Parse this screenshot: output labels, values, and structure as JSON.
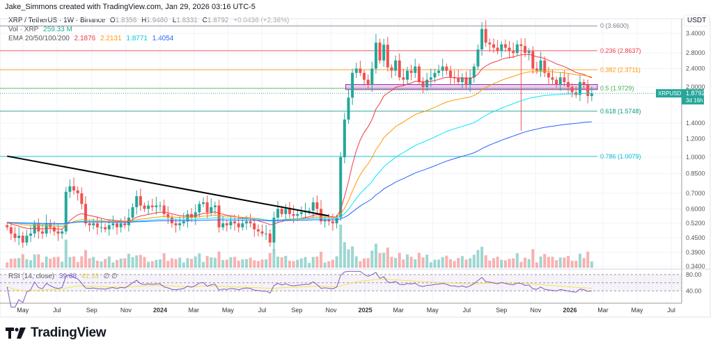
{
  "credit": "Jake_Simmons created with TradingView.com, Jan 29, 2026 03:16 UTC-5",
  "legend": {
    "symbol": "XRP / TetherUS · 1W · Binance",
    "o_label": "O",
    "o": "1.8356",
    "h_label": "H",
    "h": "1.9460",
    "l_label": "L",
    "l": "1.8331",
    "c_label": "C",
    "c": "1.8792",
    "change": "+0.0436 (+2.38%)",
    "vol_label": "Vol · XRP",
    "vol": "259.33 M",
    "ema_label": "EMA 20/50/100/200",
    "ema20": "2.1876",
    "ema50": "2.2131",
    "ema100": "1.8771",
    "ema200": "1.4054",
    "rsi_label": "RSI (14, close)",
    "rsi": "39.68",
    "rsi_ma": "41.33",
    "rsi_extra": "∅ ∅"
  },
  "colors": {
    "up": "#26a69a",
    "down": "#ef5350",
    "ema20": "#f23645",
    "ema50": "#ff9800",
    "ema100": "#00e5ff",
    "ema200": "#2962ff",
    "rsi": "#7e57c2",
    "rsi_ma": "#f5e642",
    "trendline": "#000000"
  },
  "price_axis": {
    "currency": "USDT",
    "ticks": [
      "3.4000",
      "2.8000",
      "2.4000",
      "2.0000",
      "1.4000",
      "1.2000",
      "1.0000",
      "0.8500",
      "0.7000",
      "0.6000",
      "0.5200",
      "0.4500",
      "0.3900",
      "0.3400"
    ]
  },
  "rsi_axis": {
    "ticks": [
      "80.00",
      "40.00"
    ]
  },
  "price_tag": {
    "symbol": "XRPUSDT",
    "price": "1.8792",
    "countdown": "3d 16h"
  },
  "time_axis": [
    {
      "label": "May",
      "date": "2023-05-01"
    },
    {
      "label": "Jul",
      "date": "2023-07-01"
    },
    {
      "label": "Sep",
      "date": "2023-09-01"
    },
    {
      "label": "Nov",
      "date": "2023-11-01"
    },
    {
      "label": "2024",
      "date": "2024-01-01"
    },
    {
      "label": "Mar",
      "date": "2024-03-01"
    },
    {
      "label": "May",
      "date": "2024-05-01"
    },
    {
      "label": "Jul",
      "date": "2024-07-01"
    },
    {
      "label": "Sep",
      "date": "2024-09-01"
    },
    {
      "label": "Nov",
      "date": "2024-11-01"
    },
    {
      "label": "2025",
      "date": "2025-01-01"
    },
    {
      "label": "Mar",
      "date": "2025-03-01"
    },
    {
      "label": "May",
      "date": "2025-05-01"
    },
    {
      "label": "Jul",
      "date": "2025-07-01"
    },
    {
      "label": "Sep",
      "date": "2025-09-01"
    },
    {
      "label": "Nov",
      "date": "2025-11-01"
    },
    {
      "label": "2026",
      "date": "2026-01-01"
    },
    {
      "label": "Mar",
      "date": "2026-03-01"
    },
    {
      "label": "May",
      "date": "2026-05-01"
    },
    {
      "label": "Jul",
      "date": "2026-07-01"
    }
  ],
  "logo": "TradingView",
  "chart_data": {
    "type": "candlestick",
    "scale": "log",
    "ylim": [
      0.34,
      3.66
    ],
    "grid": true,
    "start_week": "2023-04-03",
    "interval": "1W",
    "closes": [
      0.5,
      0.47,
      0.45,
      0.46,
      0.43,
      0.46,
      0.47,
      0.52,
      0.48,
      0.47,
      0.52,
      0.5,
      0.48,
      0.47,
      0.48,
      0.71,
      0.75,
      0.72,
      0.7,
      0.63,
      0.52,
      0.51,
      0.52,
      0.5,
      0.5,
      0.49,
      0.51,
      0.52,
      0.5,
      0.52,
      0.51,
      0.55,
      0.61,
      0.68,
      0.62,
      0.6,
      0.62,
      0.61,
      0.62,
      0.62,
      0.57,
      0.55,
      0.52,
      0.51,
      0.52,
      0.53,
      0.57,
      0.55,
      0.58,
      0.63,
      0.64,
      0.58,
      0.61,
      0.62,
      0.5,
      0.52,
      0.51,
      0.53,
      0.52,
      0.5,
      0.52,
      0.53,
      0.52,
      0.49,
      0.48,
      0.47,
      0.47,
      0.43,
      0.55,
      0.6,
      0.57,
      0.6,
      0.57,
      0.56,
      0.57,
      0.58,
      0.59,
      0.59,
      0.64,
      0.6,
      0.53,
      0.54,
      0.53,
      0.52,
      0.55,
      1.0,
      1.45,
      1.8,
      2.3,
      2.4,
      2.3,
      2.15,
      2.05,
      2.4,
      3.1,
      2.6,
      3.04,
      2.43,
      2.35,
      2.6,
      2.2,
      2.15,
      2.35,
      2.3,
      2.45,
      2.1,
      2.0,
      2.15,
      2.2,
      2.3,
      2.35,
      2.45,
      2.35,
      2.2,
      2.18,
      2.1,
      2.2,
      2.05,
      2.2,
      2.45,
      2.9,
      3.55,
      3.1,
      3.05,
      2.95,
      2.85,
      3.05,
      2.95,
      2.85,
      2.8,
      3.05,
      3.0,
      2.8,
      2.85,
      2.4,
      2.35,
      2.6,
      2.3,
      2.2,
      2.15,
      2.05,
      2.2,
      2.1,
      2.0,
      1.9,
      1.85,
      2.1,
      2.05,
      1.83,
      1.8792
    ],
    "notable_lows": [
      {
        "date": "2025-10-06",
        "low": 1.3
      }
    ],
    "fib_levels": [
      {
        "label": "0 (3.6600)",
        "value": 3.66,
        "color": "#787b86"
      },
      {
        "label": "0.236 (2.8637)",
        "value": 2.8637,
        "color": "#f23645"
      },
      {
        "label": "0.382 (2.3711)",
        "value": 2.3711,
        "color": "#ff9800"
      },
      {
        "label": "0.5 (1.9729)",
        "value": 1.9729,
        "color": "#4caf50"
      },
      {
        "label": "0.618 (1.5748)",
        "value": 1.5748,
        "color": "#089981"
      },
      {
        "label": "0.786 (1.0079)",
        "value": 1.0079,
        "color": "#00bcd4"
      }
    ],
    "trendline": [
      {
        "date": "2023-04-03",
        "price": 1.01
      },
      {
        "date": "2024-10-28",
        "price": 0.56
      }
    ],
    "zone": {
      "from": "2024-12-02",
      "to": "2026-01-26",
      "low": 1.95,
      "high": 2.05,
      "color": "#9c27b0"
    },
    "rsi_band": [
      40,
      80
    ]
  }
}
